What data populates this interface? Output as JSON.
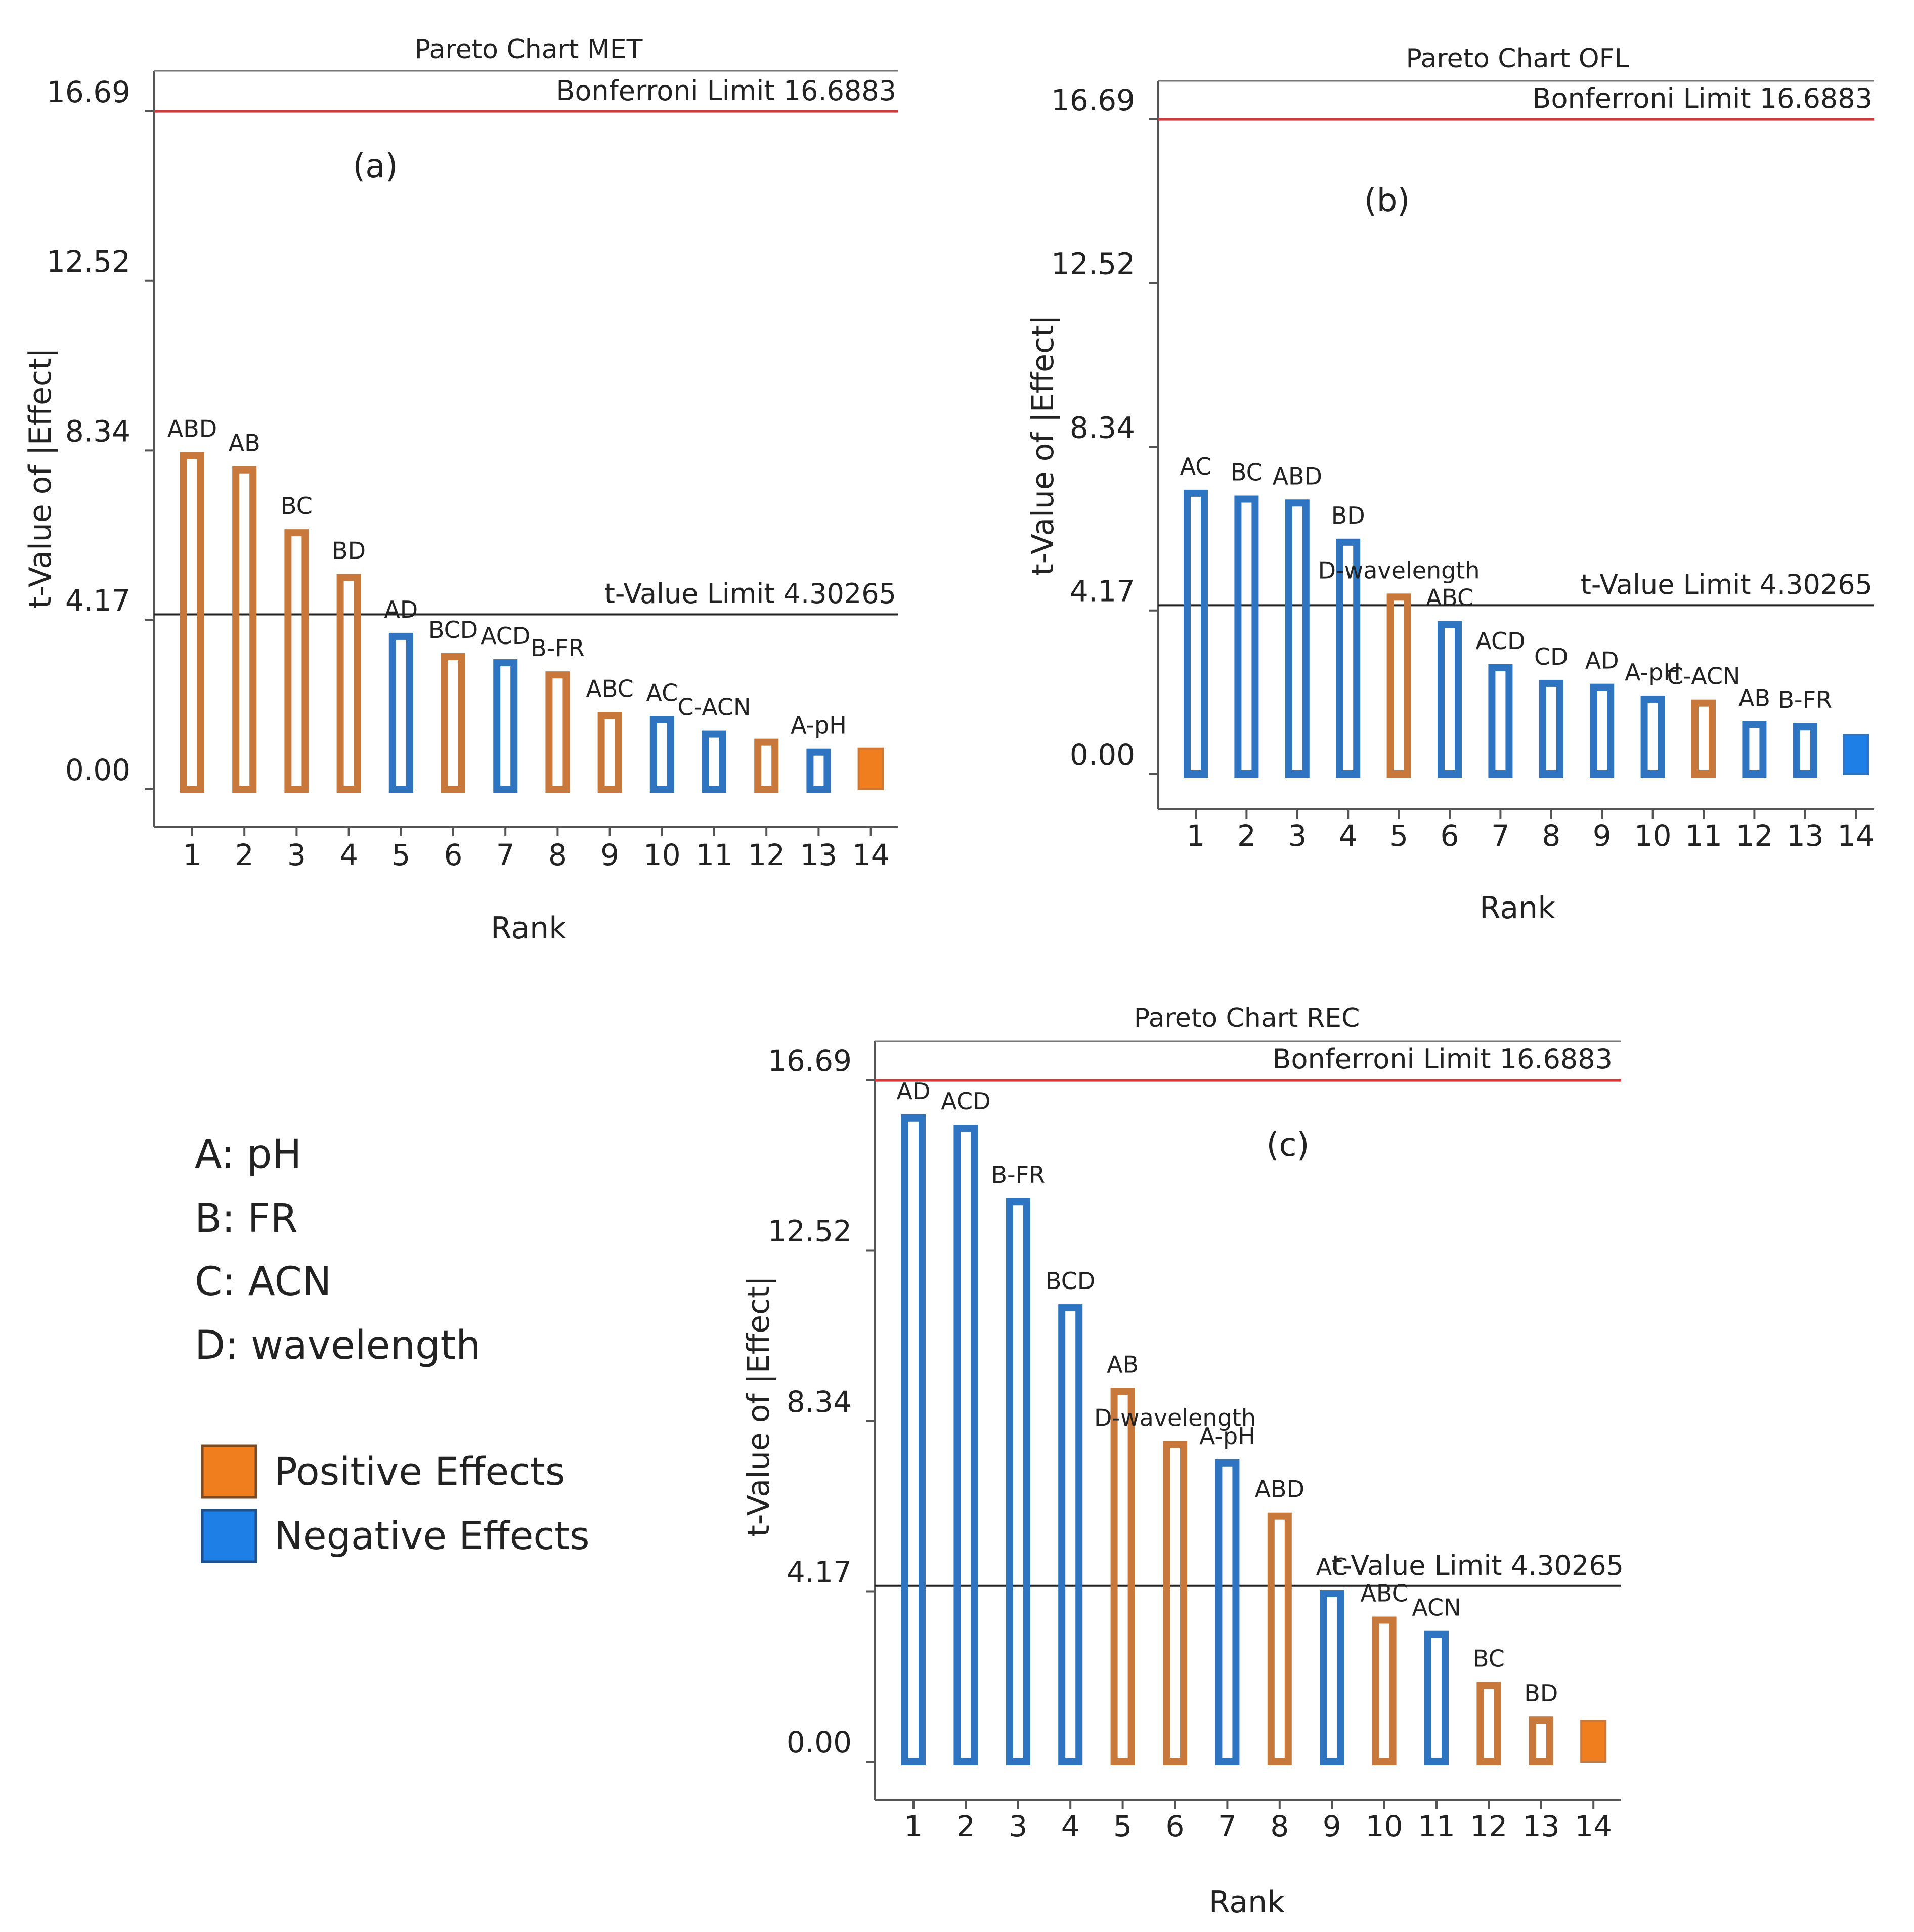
{
  "colors": {
    "positive": "#C8783A",
    "positive_fill": "#F07E1E",
    "negative": "#2E74C0",
    "negative_fill": "#1E7FE6",
    "bonferroni": "#D43A3A",
    "limit_line": "#222222",
    "axis": "#555555"
  },
  "legend": {
    "factors": [
      "A: pH",
      "B: FR",
      "C: ACN",
      "D: wavelength"
    ],
    "positive_label": "Positive Effects",
    "negative_label": "Negative Effects"
  },
  "chart_data": [
    {
      "type": "bar",
      "panel": "(a)",
      "title": "Pareto Chart MET",
      "xlabel": "Rank",
      "ylabel": "t-Value of |Effect|",
      "ylim": [
        0,
        16.69
      ],
      "yticks": [
        "0.00",
        "4.17",
        "8.34",
        "12.52",
        "16.69"
      ],
      "ytick_values": [
        0,
        4.17,
        8.34,
        12.52,
        16.69
      ],
      "categories": [
        "1",
        "2",
        "3",
        "4",
        "5",
        "6",
        "7",
        "8",
        "9",
        "10",
        "11",
        "12",
        "13",
        "14"
      ],
      "bar_labels": [
        "ABD",
        "AB",
        "BC",
        "BD",
        "AD",
        "BCD",
        "ACD",
        "B-FR",
        "ABC",
        "AC",
        "C-ACN",
        "",
        "A-pH",
        ""
      ],
      "values": [
        8.3,
        7.95,
        6.4,
        5.3,
        3.85,
        3.35,
        3.2,
        2.9,
        1.9,
        1.8,
        1.45,
        1.25,
        1.0,
        1.0
      ],
      "effects": [
        "positive",
        "positive",
        "positive",
        "positive",
        "negative",
        "positive",
        "negative",
        "positive",
        "positive",
        "negative",
        "negative",
        "positive",
        "negative",
        "positive"
      ],
      "filled_last": true,
      "bonferroni_label": "Bonferroni Limit 16.6883",
      "bonferroni_value": 16.6883,
      "t_limit_label": "t-Value Limit 4.30265",
      "t_limit_value": 4.30265
    },
    {
      "type": "bar",
      "panel": "(b)",
      "title": "Pareto Chart OFL",
      "xlabel": "Rank",
      "ylabel": "t-Value of |Effect|",
      "ylim": [
        0,
        16.69
      ],
      "yticks": [
        "0.00",
        "4.17",
        "8.34",
        "12.52",
        "16.69"
      ],
      "ytick_values": [
        0,
        4.17,
        8.34,
        12.52,
        16.69
      ],
      "categories": [
        "1",
        "2",
        "3",
        "4",
        "5",
        "6",
        "7",
        "8",
        "9",
        "10",
        "11",
        "12",
        "13",
        "14"
      ],
      "bar_labels": [
        "AC",
        "BC",
        "ABD",
        "BD",
        "D-wavelength",
        "ABC",
        "ACD",
        "CD",
        "AD",
        "A-pH",
        "C-ACN",
        "AB",
        "B-FR",
        ""
      ],
      "values": [
        7.25,
        7.1,
        7.0,
        6.0,
        4.6,
        3.9,
        2.8,
        2.4,
        2.3,
        2.0,
        1.9,
        1.35,
        1.3,
        1.0
      ],
      "effects": [
        "negative",
        "negative",
        "negative",
        "negative",
        "positive",
        "negative",
        "negative",
        "negative",
        "negative",
        "negative",
        "positive",
        "negative",
        "negative",
        "negative"
      ],
      "filled_last": true,
      "bonferroni_label": "Bonferroni Limit 16.6883",
      "bonferroni_value": 16.6883,
      "t_limit_label": "t-Value Limit 4.30265",
      "t_limit_value": 4.30265
    },
    {
      "type": "bar",
      "panel": "(c)",
      "title": "Pareto Chart REC",
      "xlabel": "Rank",
      "ylabel": "t-Value of |Effect|",
      "ylim": [
        0,
        16.69
      ],
      "yticks": [
        "0.00",
        "4.17",
        "8.34",
        "12.52",
        "16.69"
      ],
      "ytick_values": [
        0,
        4.17,
        8.34,
        12.52,
        16.69
      ],
      "categories": [
        "1",
        "2",
        "3",
        "4",
        "5",
        "6",
        "7",
        "8",
        "9",
        "10",
        "11",
        "12",
        "13",
        "14"
      ],
      "bar_labels": [
        "AD",
        "ACD",
        "B-FR",
        "BCD",
        "AB",
        "D-wavelength",
        "A-pH",
        "ABD",
        "AC",
        "ABC",
        "ACN",
        "BC",
        "BD",
        ""
      ],
      "values": [
        15.85,
        15.6,
        13.8,
        11.2,
        9.15,
        7.85,
        7.4,
        6.1,
        4.2,
        3.55,
        3.2,
        1.95,
        1.1,
        1.0
      ],
      "effects": [
        "negative",
        "negative",
        "negative",
        "negative",
        "positive",
        "positive",
        "negative",
        "positive",
        "negative",
        "positive",
        "negative",
        "positive",
        "positive",
        "positive"
      ],
      "filled_last": true,
      "bonferroni_label": "Bonferroni Limit 16.6883",
      "bonferroni_value": 16.6883,
      "t_limit_label": "t-Value Limit 4.30265",
      "t_limit_value": 4.30265
    }
  ]
}
